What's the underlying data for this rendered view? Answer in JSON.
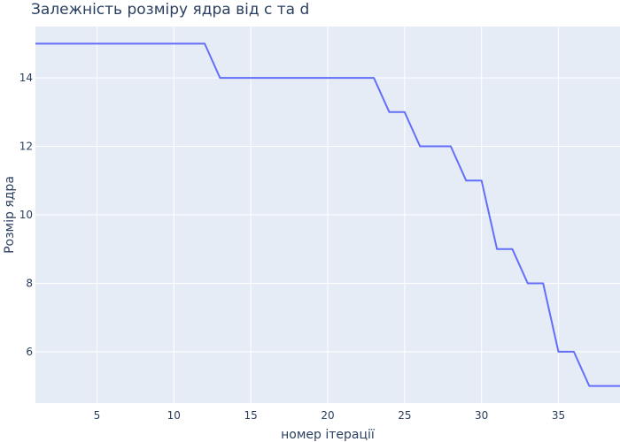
{
  "chart_data": {
    "type": "line",
    "title": "Залежність розміру ядра від с та d",
    "xlabel": "номер ітерації",
    "ylabel": "Розмір ядра",
    "xlim": [
      1,
      39
    ],
    "ylim": [
      4.5,
      15.5
    ],
    "x_ticks": [
      5,
      10,
      15,
      20,
      25,
      30,
      35
    ],
    "y_ticks": [
      6,
      8,
      10,
      12,
      14
    ],
    "grid": true,
    "legend": "none",
    "colors": {
      "line": "#636efa",
      "plot_bg": "#e5ecf6",
      "grid": "#ffffff",
      "text": "#2a3f5f"
    },
    "series": [
      {
        "x": [
          1,
          2,
          3,
          4,
          5,
          6,
          7,
          8,
          9,
          10,
          11,
          12,
          13,
          14,
          15,
          16,
          17,
          18,
          19,
          20,
          21,
          22,
          23,
          24,
          25,
          26,
          27,
          28,
          29,
          30,
          31,
          32,
          33,
          34,
          35,
          36,
          37,
          38,
          39
        ],
        "values": [
          15,
          15,
          15,
          15,
          15,
          15,
          15,
          15,
          15,
          15,
          15,
          15,
          14,
          14,
          14,
          14,
          14,
          14,
          14,
          14,
          14,
          14,
          14,
          13,
          13,
          12,
          12,
          12,
          11,
          11,
          9,
          9,
          8,
          8,
          6,
          6,
          5,
          5,
          5
        ]
      }
    ]
  }
}
